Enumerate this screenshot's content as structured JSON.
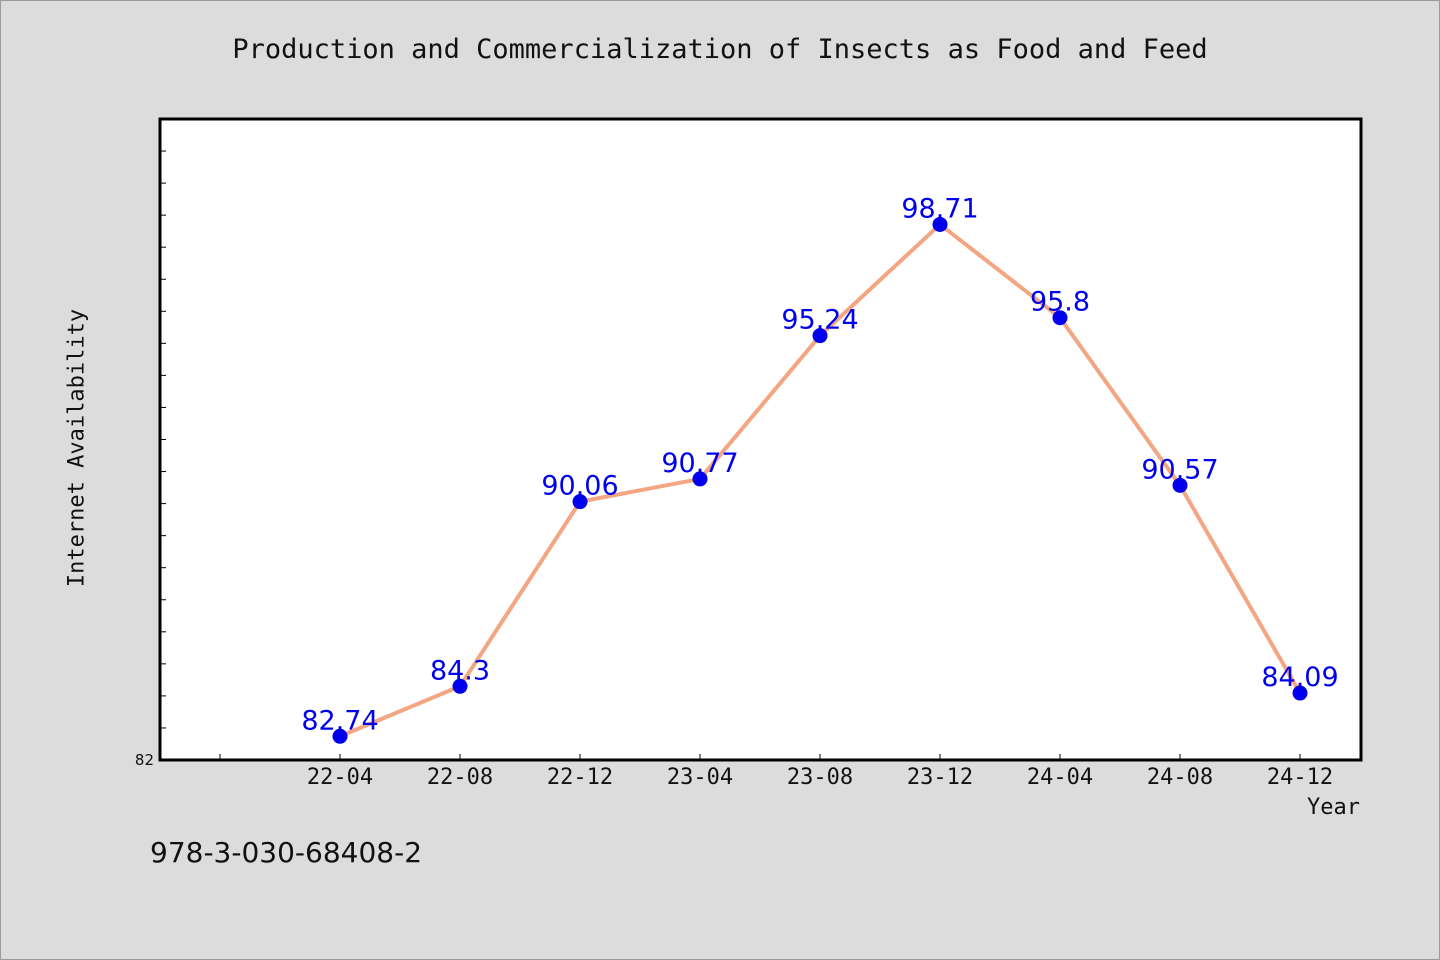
{
  "chart_data": {
    "type": "line",
    "title": "Production and Commercialization of Insects as Food and Feed",
    "xlabel": "Year",
    "ylabel": "Internet Availability",
    "categories": [
      "22-04",
      "22-08",
      "22-12",
      "23-04",
      "23-08",
      "23-12",
      "24-04",
      "24-08",
      "24-12"
    ],
    "series": [
      {
        "values": [
          82.74,
          84.3,
          90.06,
          90.77,
          95.24,
          98.71,
          95.8,
          90.57,
          84.09
        ],
        "data_labels": [
          "82.74",
          "84.3",
          "90.06",
          "90.77",
          "95.24",
          "98.71",
          "95.8",
          "90.57",
          "84.09"
        ],
        "line_color": "#f4a582",
        "marker_color": "#0000ee",
        "label_color": "#0000ee"
      }
    ],
    "ylim": [
      82,
      102
    ],
    "y_tick_labels": [
      "82"
    ],
    "grid": false,
    "legend": "none"
  },
  "footnote": "978-3-030-68408-2",
  "colors": {
    "background": "#dcdcdc",
    "plot_background": "#ffffff",
    "axis": "#000000"
  }
}
